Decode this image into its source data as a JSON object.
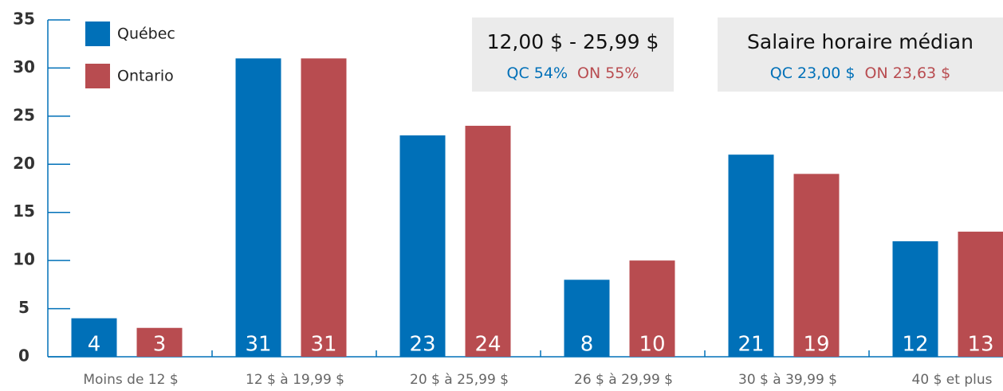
{
  "chart_data": {
    "type": "bar",
    "categories": [
      "Moins de 12 $",
      "12 $ à 19,99 $",
      "20 $ à 25,99 $",
      "26 $ à 29,99 $",
      "30 $ à 39,99 $",
      "40 $ et plus"
    ],
    "series": [
      {
        "name": "Québec",
        "color": "#0070b8",
        "values": [
          4,
          31,
          23,
          8,
          21,
          12
        ]
      },
      {
        "name": "Ontario",
        "color": "#b84c50",
        "values": [
          3,
          31,
          24,
          10,
          19,
          13
        ]
      }
    ],
    "ylim": [
      0,
      35
    ],
    "yticks": [
      0,
      5,
      10,
      15,
      20,
      25,
      30,
      35
    ],
    "grid": false,
    "legend": "top-left",
    "annotations": [
      {
        "title": "12,00 $ - 25,99 $",
        "items": [
          {
            "text": "QC 54%",
            "color": "#0070b8"
          },
          {
            "text": "ON 55%",
            "color": "#b84c50"
          }
        ]
      },
      {
        "title": "Salaire horaire médian",
        "items": [
          {
            "text": "QC 23,00 $",
            "color": "#0070b8"
          },
          {
            "text": "ON 23,63 $",
            "color": "#b84c50"
          }
        ]
      }
    ]
  }
}
